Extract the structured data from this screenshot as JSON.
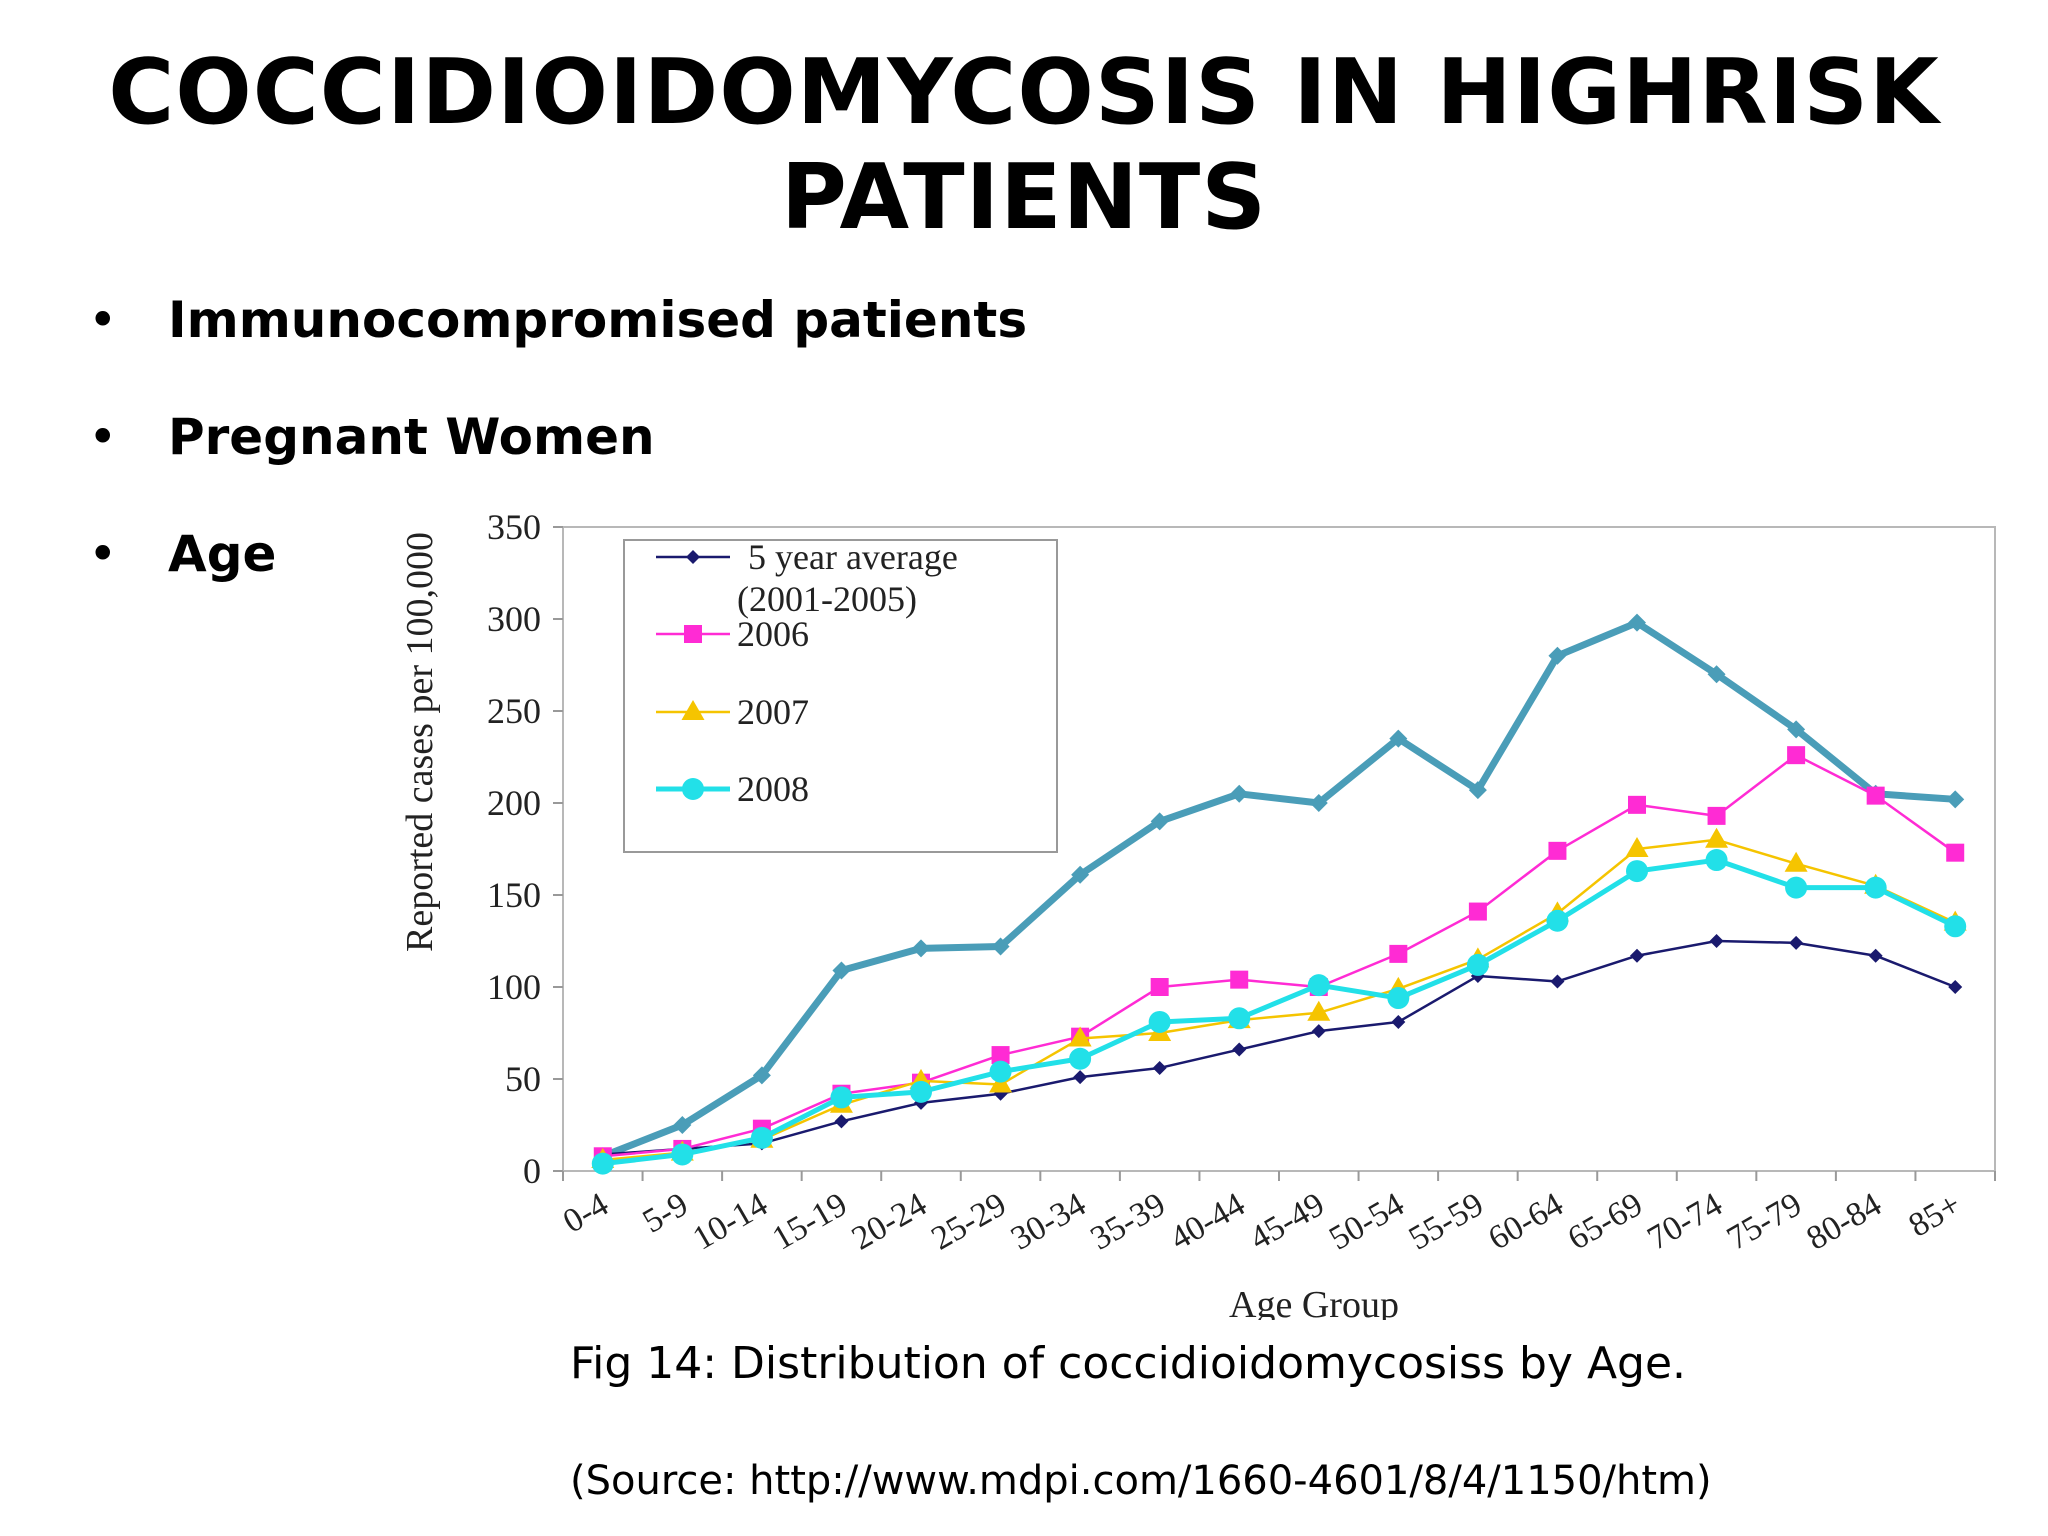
{
  "slide": {
    "title": "COCCIDIOIDOMYCOSIS IN HIGHRISK PATIENTS",
    "bullets": [
      "Immunocompromised patients",
      "Pregnant Women",
      "Age"
    ],
    "bullet_glyph": "•",
    "caption": "Fig 14: Distribution of coccidioidomycosiss by Age.",
    "source": "(Source: http://www.mdpi.com/1660-4601/8/4/1150/htm)"
  },
  "chart_data": {
    "type": "line",
    "ylabel": "Reported cases per 100,000",
    "xlabel": "Age Group",
    "ylim": [
      0,
      350
    ],
    "yticks": [
      0,
      50,
      100,
      150,
      200,
      250,
      300,
      350
    ],
    "grid": false,
    "legend_position": "top-left",
    "categories": [
      "0-4",
      "5-9",
      "10-14",
      "15-19",
      "20-24",
      "25-29",
      "30-34",
      "35-39",
      "40-44",
      "45-49",
      "50-54",
      "55-59",
      "60-64",
      "65-69",
      "70-74",
      "75-79",
      "80-84",
      "85+"
    ],
    "series": [
      {
        "name": "",
        "color": "#4a9db8",
        "marker": "diamond",
        "values": [
          8,
          25,
          52,
          109,
          121,
          122,
          161,
          190,
          205,
          200,
          235,
          207,
          280,
          298,
          270,
          240,
          205,
          202
        ]
      },
      {
        "name": "5 year average (2001-2005)",
        "legend_lines": [
          "5 year average",
          "(2001-2005)"
        ],
        "color": "#1a1a6e",
        "marker": "diamond",
        "values": [
          9,
          12,
          15,
          27,
          37,
          42,
          51,
          56,
          66,
          76,
          81,
          106,
          103,
          117,
          125,
          124,
          117,
          100
        ]
      },
      {
        "name": "2006",
        "color": "#ff2bd4",
        "marker": "square",
        "values": [
          8,
          12,
          23,
          42,
          48,
          63,
          73,
          100,
          104,
          100,
          118,
          141,
          174,
          199,
          193,
          226,
          204,
          173
        ]
      },
      {
        "name": "2007",
        "color": "#f5c400",
        "marker": "triangle",
        "values": [
          6,
          10,
          17,
          36,
          49,
          47,
          72,
          75,
          82,
          86,
          99,
          115,
          140,
          175,
          180,
          167,
          155,
          135
        ]
      },
      {
        "name": "2008",
        "color": "#22e0e8",
        "marker": "circle",
        "values": [
          4,
          9,
          18,
          40,
          43,
          54,
          61,
          81,
          83,
          101,
          94,
          112,
          136,
          163,
          169,
          154,
          154,
          133
        ]
      }
    ]
  }
}
